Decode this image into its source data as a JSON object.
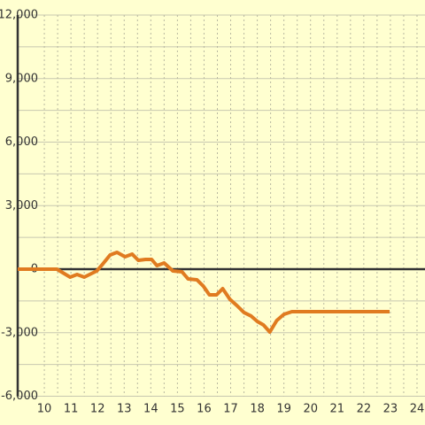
{
  "chart_data": {
    "type": "line",
    "x": [
      9,
      10.47,
      10.97,
      11.23,
      11.5,
      11.97,
      12.2,
      12.47,
      12.73,
      13.03,
      13.3,
      13.53,
      13.8,
      14.03,
      14.23,
      14.5,
      14.83,
      15.17,
      15.4,
      15.73,
      15.97,
      16.2,
      16.47,
      16.7,
      16.97,
      17.23,
      17.5,
      17.77,
      18.0,
      18.23,
      18.47,
      18.73,
      19.0,
      19.3,
      22.97
    ],
    "series": [
      {
        "color": "#e07b20",
        "values": [
          0,
          0,
          -376,
          -250,
          -376,
          -84,
          250,
          670,
          795,
          585,
          710,
          418,
          460,
          460,
          167,
          293,
          -84,
          -125,
          -460,
          -500,
          -795,
          -1212,
          -1212,
          -920,
          -1421,
          -1714,
          -2048,
          -2215,
          -2466,
          -2633,
          -2968,
          -2424,
          -2132,
          -2006,
          -2006
        ]
      }
    ],
    "xlim": [
      9,
      24.3
    ],
    "xticks": [
      10,
      11,
      12,
      13,
      14,
      15,
      16,
      17,
      18,
      19,
      20,
      21,
      22,
      23,
      24
    ],
    "ylim": [
      -6000,
      12000
    ],
    "yticks": [
      {
        "value": -6000,
        "label": "-6,000"
      },
      {
        "value": -3000,
        "label": "-3,000"
      },
      0,
      {
        "value": 3000,
        "label": "3,000"
      },
      {
        "value": 6000,
        "label": "6,000"
      },
      {
        "value": 9000,
        "label": "9,000"
      },
      {
        "value": 12000,
        "label": "12,000"
      }
    ],
    "grid": true
  }
}
